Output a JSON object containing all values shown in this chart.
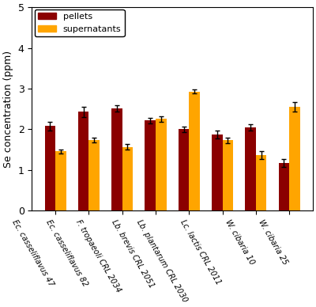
{
  "categories": [
    "Ec. casseliflavus 47",
    "Ec. casseliflavus 82",
    "F. tropaeoli CRL 2034",
    "Lb. brevis CRL 2051",
    "Lb. plantarum CRL 2030",
    "Lc. lactis CRL 2011",
    "W. cibaria 10",
    "W. cibaria 25"
  ],
  "pellets": [
    2.08,
    2.43,
    2.52,
    2.22,
    2.0,
    1.87,
    2.05,
    1.17
  ],
  "supernatants": [
    1.46,
    1.73,
    1.57,
    2.26,
    2.93,
    1.73,
    1.37,
    2.55
  ],
  "pellets_err": [
    0.1,
    0.13,
    0.08,
    0.07,
    0.07,
    0.1,
    0.07,
    0.1
  ],
  "supernatants_err": [
    0.05,
    0.06,
    0.07,
    0.07,
    0.05,
    0.07,
    0.1,
    0.12
  ],
  "pellets_color": "#8B0000",
  "supernatants_color": "#FFA500",
  "ylabel": "Se concentration (ppm)",
  "ylim": [
    0,
    5
  ],
  "yticks": [
    0,
    1,
    2,
    3,
    4,
    5
  ],
  "bar_width": 0.32,
  "legend_labels": [
    "pellets",
    "supernatants"
  ],
  "background_color": "#ffffff",
  "legend_loc": "upper left",
  "xticklabel_rotation": -60,
  "xticklabel_fontsize": 7.0,
  "ylabel_fontsize": 9,
  "ytick_fontsize": 9
}
